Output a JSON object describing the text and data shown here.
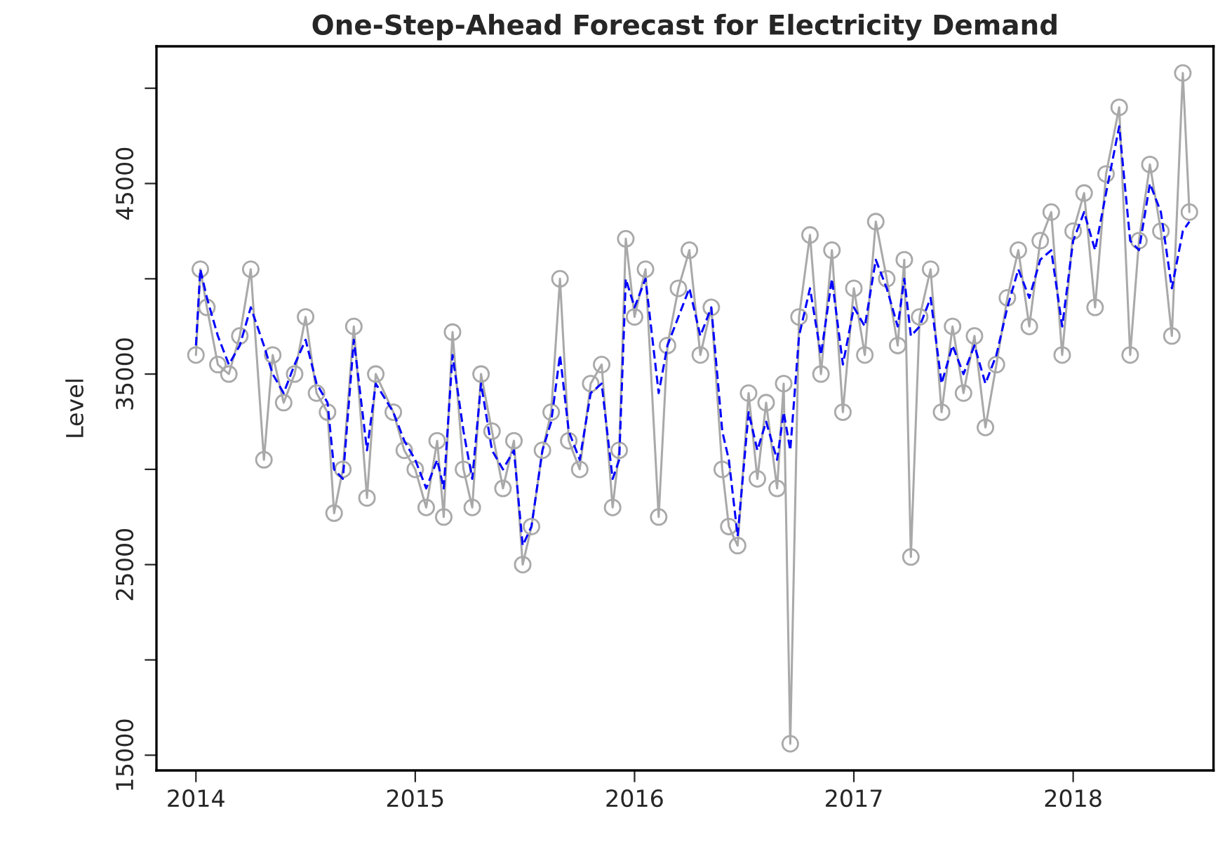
{
  "chart_data": {
    "type": "line",
    "title": "One-Step-Ahead Forecast for Electricity Demand",
    "ylabel": "Level",
    "x": [
      2014.0,
      2014.02,
      2014.05,
      2014.1,
      2014.15,
      2014.2,
      2014.25,
      2014.31,
      2014.35,
      2014.4,
      2014.45,
      2014.5,
      2014.55,
      2014.6,
      2014.63,
      2014.67,
      2014.72,
      2014.78,
      2014.82,
      2014.9,
      2014.95,
      2015.0,
      2015.05,
      2015.1,
      2015.13,
      2015.17,
      2015.22,
      2015.26,
      2015.3,
      2015.35,
      2015.4,
      2015.45,
      2015.49,
      2015.53,
      2015.58,
      2015.62,
      2015.66,
      2015.7,
      2015.75,
      2015.8,
      2015.85,
      2015.9,
      2015.93,
      2015.96,
      2016.0,
      2016.05,
      2016.11,
      2016.15,
      2016.2,
      2016.25,
      2016.3,
      2016.35,
      2016.4,
      2016.43,
      2016.47,
      2016.52,
      2016.56,
      2016.6,
      2016.65,
      2016.68,
      2016.71,
      2016.75,
      2016.8,
      2016.85,
      2016.9,
      2016.95,
      2017.0,
      2017.05,
      2017.1,
      2017.15,
      2017.2,
      2017.23,
      2017.26,
      2017.3,
      2017.35,
      2017.4,
      2017.45,
      2017.5,
      2017.55,
      2017.6,
      2017.65,
      2017.7,
      2017.75,
      2017.8,
      2017.85,
      2017.9,
      2017.95,
      2018.0,
      2018.05,
      2018.1,
      2018.15,
      2018.21,
      2018.26,
      2018.3,
      2018.35,
      2018.4,
      2018.45,
      2018.5,
      2018.53
    ],
    "series": [
      {
        "color": "#a9a9a9",
        "marker": "circle",
        "line_style": "solid",
        "values": [
          36000,
          40500,
          38500,
          35500,
          35000,
          37000,
          40500,
          30500,
          36000,
          33500,
          35000,
          38000,
          34000,
          33000,
          27700,
          30000,
          37500,
          28500,
          35000,
          33000,
          31000,
          30000,
          28000,
          31500,
          27500,
          37200,
          30000,
          28000,
          35000,
          32000,
          29000,
          31500,
          25000,
          27000,
          31000,
          33000,
          40000,
          31500,
          30000,
          34500,
          35500,
          28000,
          31000,
          42100,
          38000,
          40500,
          27500,
          36500,
          39500,
          41500,
          36000,
          38500,
          30000,
          27000,
          26000,
          34000,
          29500,
          33500,
          29000,
          34500,
          15600,
          38000,
          42300,
          35000,
          41500,
          33000,
          39500,
          36000,
          43000,
          40000,
          36500,
          41000,
          25400,
          38000,
          40500,
          33000,
          37500,
          34000,
          37000,
          32200,
          35500,
          39000,
          41500,
          37500,
          42000,
          43500,
          36000,
          42500,
          44500,
          38500,
          45500,
          49000,
          36000,
          42000,
          46000,
          42500,
          37000,
          50800,
          43500
        ]
      },
      {
        "color": "#0000ff",
        "marker": "none",
        "line_style": "dashed",
        "values": [
          36500,
          40500,
          39000,
          37000,
          35500,
          36500,
          38500,
          36500,
          35000,
          34000,
          35500,
          36800,
          34500,
          33500,
          30000,
          29500,
          36800,
          31000,
          34500,
          33000,
          31500,
          30500,
          29000,
          30500,
          29000,
          36000,
          32000,
          29500,
          34500,
          31000,
          30000,
          31000,
          26000,
          27000,
          31000,
          32500,
          36000,
          32000,
          30500,
          34000,
          34500,
          29500,
          30500,
          40000,
          38500,
          40000,
          34000,
          36500,
          38000,
          39500,
          37000,
          38500,
          32000,
          30500,
          26500,
          33000,
          31000,
          32500,
          30500,
          33000,
          31000,
          37000,
          39500,
          36000,
          40000,
          35500,
          38500,
          37500,
          41000,
          39500,
          37500,
          40000,
          37000,
          37500,
          39000,
          34500,
          36500,
          35000,
          36500,
          34500,
          36000,
          38500,
          40500,
          39000,
          41000,
          41500,
          37500,
          42000,
          43500,
          41500,
          44500,
          48000,
          42000,
          41500,
          45000,
          43500,
          39500,
          42500,
          43000
        ]
      }
    ],
    "xlim": [
      2013.82,
      2018.64
    ],
    "xticks": [
      2014,
      2015,
      2016,
      2017,
      2018
    ],
    "ylim": [
      14200,
      52200
    ],
    "yticks": [
      15000,
      {
        "value": 20000,
        "label": null
      },
      25000,
      {
        "value": 30000,
        "label": null
      },
      35000,
      {
        "value": 40000,
        "label": null
      },
      45000,
      {
        "value": 50000,
        "label": null
      }
    ],
    "grid": false,
    "legend": false
  }
}
